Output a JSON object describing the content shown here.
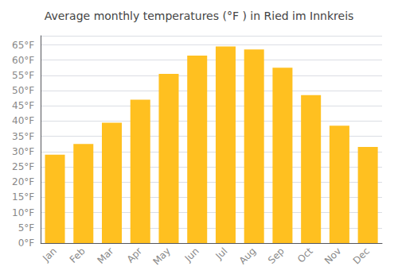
{
  "chart_data": {
    "type": "bar",
    "title": "Average monthly temperatures (°F ) in Ried im Innkreis",
    "categories": [
      "Jan",
      "Feb",
      "Mar",
      "Apr",
      "May",
      "Jun",
      "Jul",
      "Aug",
      "Sep",
      "Oct",
      "Nov",
      "Dec"
    ],
    "values": [
      29.0,
      32.5,
      39.5,
      47.0,
      55.5,
      61.5,
      64.5,
      63.5,
      57.5,
      48.5,
      38.5,
      31.5
    ],
    "color": "#FFC020",
    "ylim": [
      0,
      68
    ],
    "yticks": [
      {
        "value": 0,
        "label": "0°F"
      },
      {
        "value": 5,
        "label": "5°F"
      },
      {
        "value": 10,
        "label": "10°F"
      },
      {
        "value": 15,
        "label": "15°F"
      },
      {
        "value": 20,
        "label": "20°F"
      },
      {
        "value": 25,
        "label": "25°F"
      },
      {
        "value": 30,
        "label": "30°F"
      },
      {
        "value": 35,
        "label": "35°F"
      },
      {
        "value": 40,
        "label": "40°F"
      },
      {
        "value": 45,
        "label": "45°F"
      },
      {
        "value": 50,
        "label": "50°F"
      },
      {
        "value": 55,
        "label": "55°F"
      },
      {
        "value": 60,
        "label": "60°F"
      },
      {
        "value": 65,
        "label": "65°F"
      }
    ],
    "grid": true
  }
}
